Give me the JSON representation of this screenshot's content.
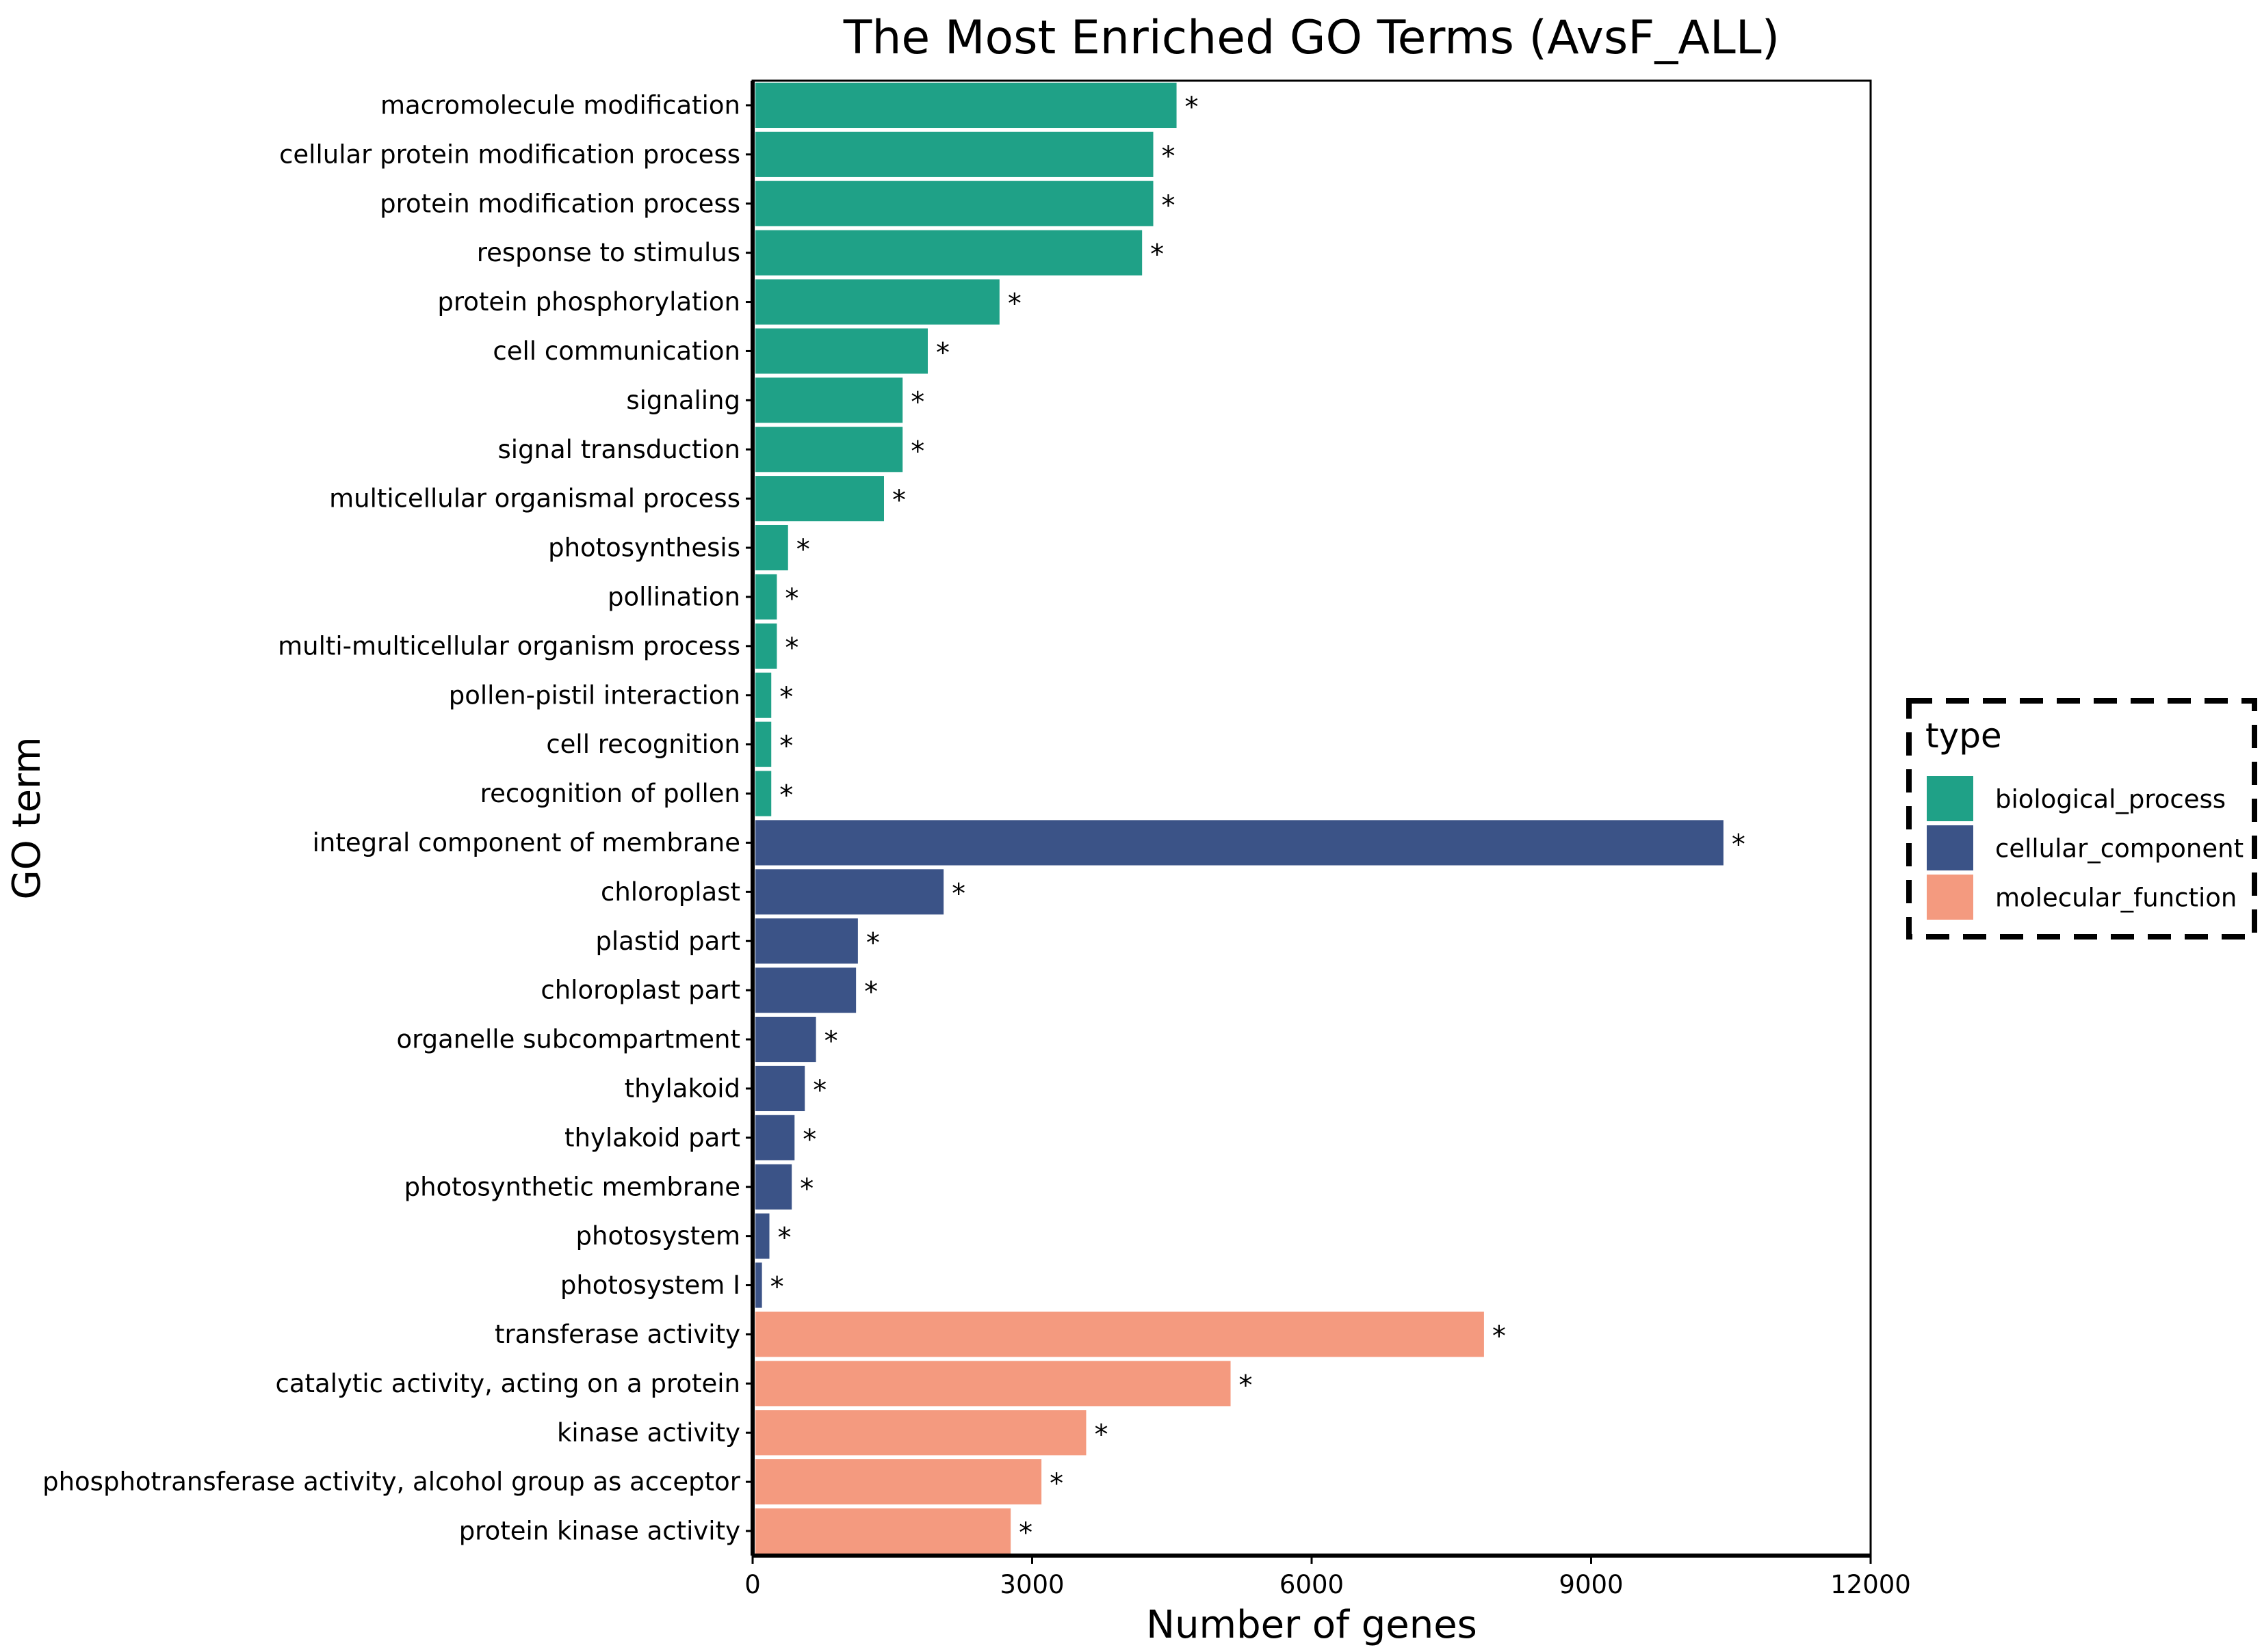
{
  "chart_data": {
    "type": "bar",
    "orientation": "horizontal",
    "title": "The Most Enriched GO Terms (AvsF_ALL)",
    "xlabel": "Number of genes",
    "ylabel": "GO term",
    "xlim": [
      0,
      12000
    ],
    "xticks": [
      "0",
      "3000",
      "6000",
      "9000",
      "12000"
    ],
    "grid": false,
    "legend": {
      "title": "type",
      "position": "right",
      "items": [
        {
          "label": "biological_process",
          "color": "#1fa187"
        },
        {
          "label": "cellular_component",
          "color": "#3b5387"
        },
        {
          "label": "molecular_function",
          "color": "#f49a7f"
        }
      ]
    },
    "significance_marker": "*",
    "categories": [
      "macromolecule modification",
      "cellular protein modification process",
      "protein modification process",
      "response to stimulus",
      "protein phosphorylation",
      "cell communication",
      "signaling",
      "signal transduction",
      "multicellular organismal process",
      "photosynthesis",
      "pollination",
      "multi-multicellular organism process",
      "pollen-pistil interaction",
      "cell recognition",
      "recognition of pollen",
      "integral component of membrane",
      "chloroplast",
      "plastid part",
      "chloroplast part",
      "organelle subcompartment",
      "thylakoid",
      "thylakoid part",
      "photosynthetic membrane",
      "photosystem",
      "photosystem I",
      "transferase activity",
      "catalytic activity, acting on a protein",
      "kinase activity",
      "phosphotransferase activity, alcohol group as acceptor",
      "protein kinase activity"
    ],
    "values": [
      4550,
      4300,
      4300,
      4180,
      2650,
      1880,
      1610,
      1610,
      1410,
      380,
      260,
      260,
      200,
      200,
      200,
      10420,
      2050,
      1130,
      1110,
      680,
      560,
      450,
      420,
      180,
      100,
      7850,
      5130,
      3580,
      3100,
      2770
    ],
    "types": [
      "biological_process",
      "biological_process",
      "biological_process",
      "biological_process",
      "biological_process",
      "biological_process",
      "biological_process",
      "biological_process",
      "biological_process",
      "biological_process",
      "biological_process",
      "biological_process",
      "biological_process",
      "biological_process",
      "biological_process",
      "cellular_component",
      "cellular_component",
      "cellular_component",
      "cellular_component",
      "cellular_component",
      "cellular_component",
      "cellular_component",
      "cellular_component",
      "cellular_component",
      "cellular_component",
      "molecular_function",
      "molecular_function",
      "molecular_function",
      "molecular_function",
      "molecular_function"
    ]
  }
}
